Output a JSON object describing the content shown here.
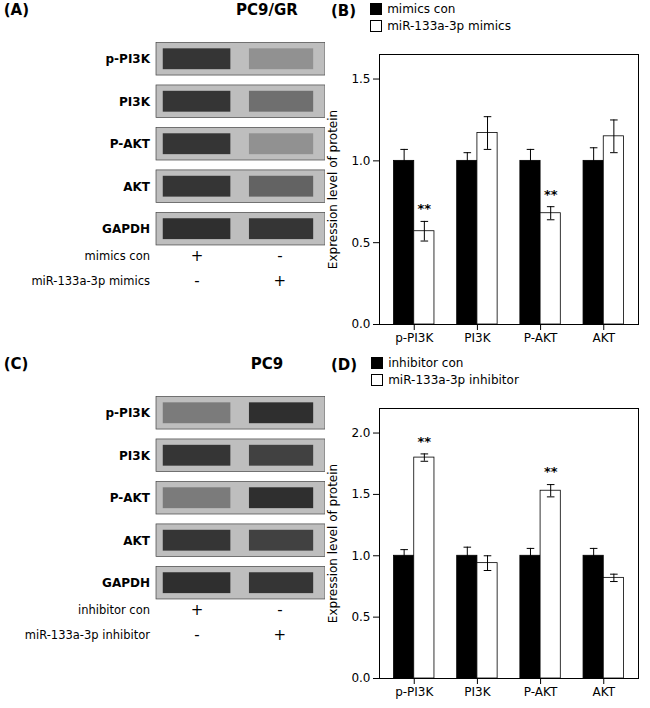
{
  "chart_data": [
    {
      "type": "blot",
      "panel_label": "(A)",
      "title": "PC9/GR",
      "categories": [
        "p-PI3K",
        "PI3K",
        "P-AKT",
        "AKT",
        "GAPDH"
      ],
      "color": "#bebebe",
      "lanes": [
        {
          "colors": [
            "rgb(15%, 15%, 15%)",
            "rgb(15%, 15%, 15%)",
            "rgb(15%, 15%, 15%)",
            "rgb(15%, 15%, 15%)",
            "rgb(12%, 12%, 12%)"
          ]
        },
        {
          "colors": [
            "rgb(55%, 55%, 55%)",
            "rgb(40%, 40%, 40%)",
            "rgb(55%, 55%, 55%)",
            "rgb(35%, 35%, 35%)",
            "rgb(15%, 15%, 15%)"
          ]
        }
      ],
      "rows": [
        {
          "label": "mimics con",
          "signs": [
            "+",
            "-"
          ]
        },
        {
          "label": "miR-133a-3p mimics",
          "signs": [
            "-",
            "+"
          ]
        }
      ]
    },
    {
      "type": "bar",
      "panel_label": "(B)",
      "categories": [
        "p-PI3K",
        "PI3K",
        "P-AKT",
        "AKT"
      ],
      "series": [
        {
          "name": "mimics con",
          "color": "#000000",
          "values": [
            1.0,
            1.0,
            1.0,
            1.0
          ],
          "errors": [
            0.07,
            0.05,
            0.07,
            0.08
          ]
        },
        {
          "name": "miR-133a-3p mimics",
          "color": "#ffffff",
          "values": [
            0.57,
            1.17,
            0.68,
            1.15
          ],
          "errors": [
            0.06,
            0.1,
            0.04,
            0.1
          ]
        }
      ],
      "ylabel": "Expression level of protein",
      "ylim": [
        0.0,
        1.65
      ],
      "yticks": [
        {
          "value": 0.0,
          "label": "0.0"
        },
        {
          "value": 0.5,
          "label": "0.5"
        },
        {
          "value": 1.0,
          "label": "1.0"
        },
        {
          "value": 1.5,
          "label": "1.5"
        }
      ],
      "annotations": [
        {
          "text": "**",
          "category": "p-PI3K",
          "series": "miR-133a-3p mimics"
        },
        {
          "text": "**",
          "category": "P-AKT",
          "series": "miR-133a-3p mimics"
        }
      ],
      "legend": "upper left",
      "grid": false
    },
    {
      "type": "blot",
      "panel_label": "(C)",
      "title": "PC9",
      "categories": [
        "p-PI3K",
        "PI3K",
        "P-AKT",
        "AKT",
        "GAPDH"
      ],
      "color": "#bebebe",
      "lanes": [
        {
          "colors": [
            "rgb(45%, 45%, 45%)",
            "rgb(15%, 15%, 15%)",
            "rgb(45%, 45%, 45%)",
            "rgb(15%, 15%, 15%)",
            "rgb(12%, 12%, 12%)"
          ]
        },
        {
          "colors": [
            "rgb(12%, 12%, 12%)",
            "rgb(20%, 20%, 20%)",
            "rgb(12%, 12%, 12%)",
            "rgb(20%, 20%, 20%)",
            "rgb(15%, 15%, 15%)"
          ]
        }
      ],
      "rows": [
        {
          "label": "inhibitor con",
          "signs": [
            "+",
            "-"
          ]
        },
        {
          "label": "miR-133a-3p inhibitor",
          "signs": [
            "-",
            "+"
          ]
        }
      ]
    },
    {
      "type": "bar",
      "panel_label": "(D)",
      "categories": [
        "p-PI3K",
        "PI3K",
        "P-AKT",
        "AKT"
      ],
      "series": [
        {
          "name": "inhibitor con",
          "color": "#000000",
          "values": [
            1.0,
            1.0,
            1.0,
            1.0
          ],
          "errors": [
            0.05,
            0.07,
            0.06,
            0.06
          ]
        },
        {
          "name": "miR-133a-3p inhibitor",
          "color": "#ffffff",
          "values": [
            1.8,
            0.94,
            1.53,
            0.82
          ],
          "errors": [
            0.03,
            0.06,
            0.05,
            0.03
          ]
        }
      ],
      "ylabel": "Expression level of protein",
      "ylim": [
        0.0,
        2.2
      ],
      "yticks": [
        {
          "value": 0.0,
          "label": "0.0"
        },
        {
          "value": 0.5,
          "label": "0.5"
        },
        {
          "value": 1.0,
          "label": "1.0"
        },
        {
          "value": 1.5,
          "label": "1.5"
        },
        {
          "value": 2.0,
          "label": "2.0"
        }
      ],
      "annotations": [
        {
          "text": "**",
          "category": "p-PI3K",
          "series": "miR-133a-3p inhibitor"
        },
        {
          "text": "**",
          "category": "P-AKT",
          "series": "miR-133a-3p inhibitor"
        }
      ],
      "legend": "upper left",
      "grid": false
    }
  ]
}
